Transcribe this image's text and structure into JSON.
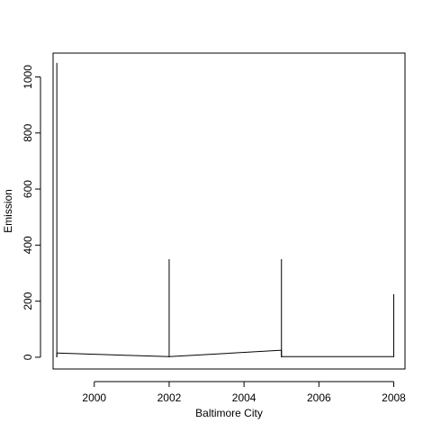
{
  "chart_data": {
    "type": "line",
    "title": "",
    "xlabel": "Baltimore City",
    "ylabel": "Emission",
    "xlim": [
      1998.9,
      2008.3
    ],
    "ylim": [
      -42,
      1085
    ],
    "x_ticks": [
      2000,
      2002,
      2004,
      2006,
      2008
    ],
    "x_tick_labels": [
      "2000",
      "2002",
      "2004",
      "2006",
      "2008"
    ],
    "y_ticks": [
      0,
      200,
      400,
      600,
      800,
      1000
    ],
    "y_tick_labels": [
      "0",
      "200",
      "400",
      "600",
      "800",
      "1000"
    ],
    "grid": false,
    "legend": "none",
    "colors": {
      "line": "#000000",
      "frame": "#000000"
    },
    "segments": [
      {
        "x": 1999,
        "y_from": 0,
        "y_to": 1050
      },
      {
        "x": 1999,
        "y_from": 0,
        "y_to": 15
      },
      {
        "x": 2002,
        "y_from": 0,
        "y_to": 350
      },
      {
        "x": 2005,
        "y_from": 0,
        "y_to": 350
      },
      {
        "x": 2008,
        "y_from": 0,
        "y_to": 225
      }
    ],
    "series": [
      {
        "x": [
          1999,
          2002,
          2005,
          2005,
          2008
        ],
        "values": [
          15,
          2,
          25,
          2,
          2
        ]
      }
    ]
  }
}
